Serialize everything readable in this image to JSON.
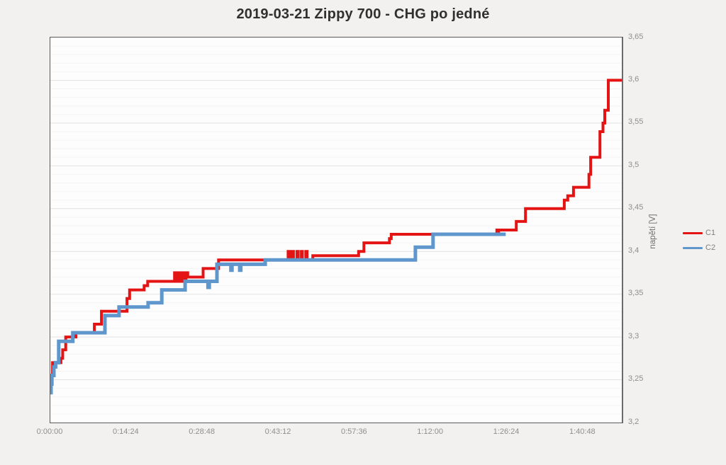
{
  "title": "2019-03-21 Zippy 700 - CHG po jedné",
  "colors": {
    "c1": "#e51414",
    "c2": "#5f97cd",
    "grid_major": "#e2e2e2",
    "grid_minor": "#f4f4f4",
    "plot_border": "#595959",
    "plot_bg": "#fdfdfd",
    "page_bg": "#f2f1ef",
    "tick_label": "#8e8e8e",
    "title_color": "#303030"
  },
  "chart_data": {
    "type": "line",
    "subtype": "step",
    "title": "2019-03-21 Zippy 700 - CHG po jedné",
    "xlabel": "",
    "ylabel": "napětí [V]",
    "ylim": [
      3.2,
      3.65
    ],
    "xlim_seconds": [
      0,
      6488
    ],
    "grid": "horizontal, minor every 0.01 V, major every 0.05 V",
    "legend_position": "right",
    "y_ticks": [
      {
        "value": 3.65,
        "label": "3,65"
      },
      {
        "value": 3.6,
        "label": "3,6"
      },
      {
        "value": 3.55,
        "label": "3,55"
      },
      {
        "value": 3.5,
        "label": "3,5"
      },
      {
        "value": 3.45,
        "label": "3,45"
      },
      {
        "value": 3.4,
        "label": "3,4"
      },
      {
        "value": 3.35,
        "label": "3,35"
      },
      {
        "value": 3.3,
        "label": "3,3"
      },
      {
        "value": 3.25,
        "label": "3,25"
      },
      {
        "value": 3.2,
        "label": "3,2"
      }
    ],
    "x_ticks": [
      {
        "seconds": 0,
        "label": "0:00:00"
      },
      {
        "seconds": 864,
        "label": "0:14:24"
      },
      {
        "seconds": 1728,
        "label": "0:28:48"
      },
      {
        "seconds": 2592,
        "label": "0:43:12"
      },
      {
        "seconds": 3456,
        "label": "0:57:36"
      },
      {
        "seconds": 4320,
        "label": "1:12:00"
      },
      {
        "seconds": 5184,
        "label": "1:26:24"
      },
      {
        "seconds": 6048,
        "label": "1:40:48"
      }
    ],
    "series": [
      {
        "name": "C1",
        "color": "#e51414",
        "stroke_width": 4,
        "points": [
          [
            0,
            3.245
          ],
          [
            10,
            3.255
          ],
          [
            25,
            3.27
          ],
          [
            120,
            3.275
          ],
          [
            140,
            3.285
          ],
          [
            175,
            3.3
          ],
          [
            290,
            3.305
          ],
          [
            500,
            3.315
          ],
          [
            580,
            3.33
          ],
          [
            870,
            3.345
          ],
          [
            900,
            3.355
          ],
          [
            1065,
            3.36
          ],
          [
            1105,
            3.365
          ],
          [
            1410,
            3.375
          ],
          [
            1430,
            3.365
          ],
          [
            1450,
            3.375
          ],
          [
            1468,
            3.365
          ],
          [
            1490,
            3.375
          ],
          [
            1512,
            3.365
          ],
          [
            1540,
            3.375
          ],
          [
            1560,
            3.37
          ],
          [
            1735,
            3.38
          ],
          [
            1910,
            3.39
          ],
          [
            2700,
            3.4
          ],
          [
            2715,
            3.39
          ],
          [
            2745,
            3.4
          ],
          [
            2760,
            3.39
          ],
          [
            2800,
            3.4
          ],
          [
            2815,
            3.39
          ],
          [
            2850,
            3.4
          ],
          [
            2862,
            3.39
          ],
          [
            2900,
            3.4
          ],
          [
            2915,
            3.39
          ],
          [
            2980,
            3.395
          ],
          [
            3500,
            3.4
          ],
          [
            3560,
            3.41
          ],
          [
            3850,
            3.415
          ],
          [
            3870,
            3.42
          ],
          [
            5070,
            3.425
          ],
          [
            5078,
            3.42
          ],
          [
            5090,
            3.425
          ],
          [
            5115,
            3.425
          ],
          [
            5290,
            3.435
          ],
          [
            5395,
            3.45
          ],
          [
            5835,
            3.46
          ],
          [
            5875,
            3.465
          ],
          [
            5940,
            3.475
          ],
          [
            6115,
            3.49
          ],
          [
            6135,
            3.51
          ],
          [
            6240,
            3.54
          ],
          [
            6275,
            3.55
          ],
          [
            6295,
            3.565
          ],
          [
            6335,
            3.6
          ],
          [
            6488,
            3.6
          ]
        ]
      },
      {
        "name": "C2",
        "color": "#5f97cd",
        "stroke_width": 5,
        "points": [
          [
            0,
            3.235
          ],
          [
            8,
            3.245
          ],
          [
            18,
            3.255
          ],
          [
            40,
            3.265
          ],
          [
            60,
            3.27
          ],
          [
            95,
            3.295
          ],
          [
            255,
            3.305
          ],
          [
            620,
            3.325
          ],
          [
            780,
            3.335
          ],
          [
            1110,
            3.34
          ],
          [
            1265,
            3.355
          ],
          [
            1530,
            3.365
          ],
          [
            1790,
            3.358
          ],
          [
            1805,
            3.365
          ],
          [
            1892,
            3.385
          ],
          [
            2050,
            3.378
          ],
          [
            2062,
            3.385
          ],
          [
            2150,
            3.378
          ],
          [
            2162,
            3.385
          ],
          [
            2440,
            3.39
          ],
          [
            4145,
            3.405
          ],
          [
            4345,
            3.42
          ],
          [
            5170,
            3.42
          ]
        ]
      }
    ],
    "legend": [
      {
        "name": "C1",
        "color": "#e51414"
      },
      {
        "name": "C2",
        "color": "#5f97cd"
      }
    ]
  },
  "layout_note_visible_text_only": true
}
